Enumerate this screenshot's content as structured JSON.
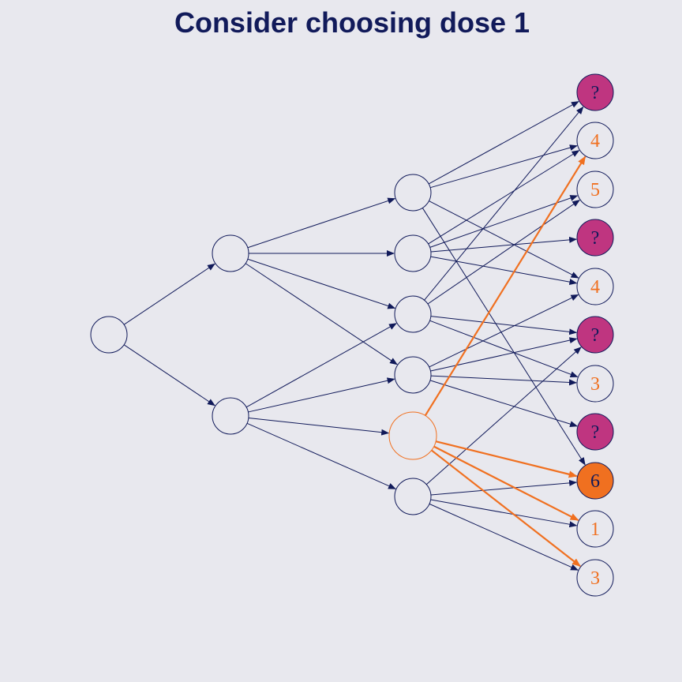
{
  "title": "Consider choosing dose 1",
  "colors": {
    "background": "#e8e8ee",
    "navy": "#111a5a",
    "orange": "#f07020",
    "magenta": "#bf3580"
  },
  "leaves": [
    {
      "label": "?",
      "style": "unknown"
    },
    {
      "label": "4",
      "style": "known"
    },
    {
      "label": "5",
      "style": "known"
    },
    {
      "label": "?",
      "style": "unknown"
    },
    {
      "label": "4",
      "style": "known"
    },
    {
      "label": "?",
      "style": "unknown"
    },
    {
      "label": "3",
      "style": "known"
    },
    {
      "label": "?",
      "style": "unknown"
    },
    {
      "label": "6",
      "style": "chosen"
    },
    {
      "label": "1",
      "style": "known"
    },
    {
      "label": "3",
      "style": "known"
    }
  ]
}
